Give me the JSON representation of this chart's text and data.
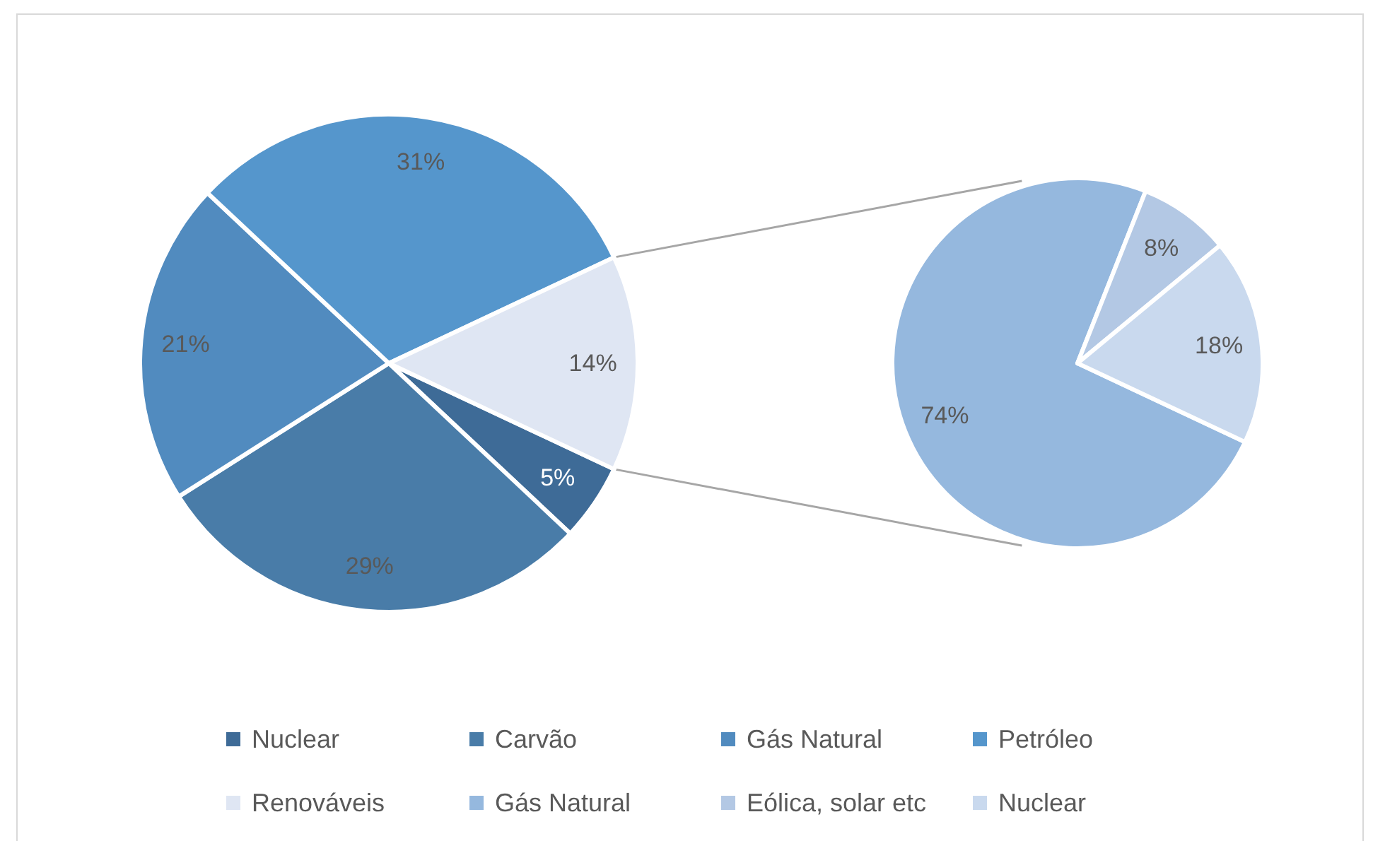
{
  "chart_data": [
    {
      "type": "pie",
      "categories": [
        "Nuclear",
        "Carvão",
        "Gás Natural",
        "Petróleo",
        "Renováveis"
      ],
      "values": [
        5,
        29,
        21,
        31,
        14
      ],
      "colors": [
        "#3e6b97",
        "#497ca8",
        "#518bbf",
        "#5596cc",
        "#dfe6f3"
      ],
      "value_labels": [
        "5%",
        "29%",
        "21%",
        "31%",
        "14%"
      ],
      "legend": "bottom"
    },
    {
      "type": "pie",
      "categories": [
        "Gás Natural",
        "Eólica, solar etc",
        "Nuclear"
      ],
      "values": [
        74,
        8,
        18
      ],
      "colors": [
        "#95b8de",
        "#b3c8e4",
        "#c9d9ee"
      ],
      "value_labels": [
        "74%",
        "8%",
        "18%"
      ],
      "legend": "bottom"
    }
  ]
}
